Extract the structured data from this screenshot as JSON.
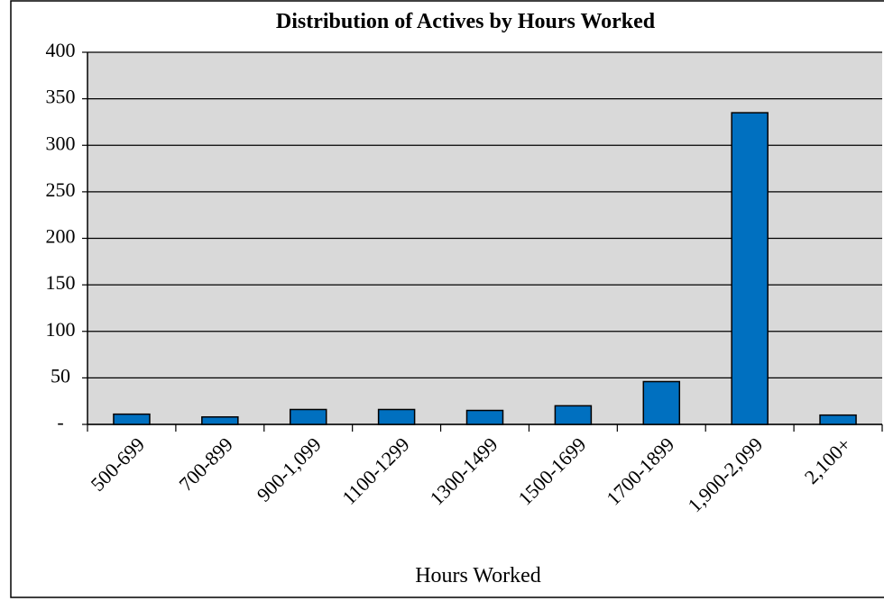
{
  "chart_data": {
    "type": "bar",
    "title": "Distribution of  Actives by  Hours Worked",
    "x_label": "Hours Worked",
    "categories": [
      "500-699",
      "700-899",
      "900-1,099",
      "1100-1299",
      "1300-1499",
      "1500-1699",
      "1700-1899",
      "1,900-2,099",
      "2,100+"
    ],
    "values": [
      11,
      8,
      16,
      16,
      15,
      20,
      46,
      335,
      10
    ],
    "color": "#0070c0",
    "ylim": [
      0,
      400
    ],
    "yticks": [
      {
        "value": 0,
        "label": "-"
      },
      50,
      100,
      150,
      200,
      250,
      300,
      350,
      400
    ],
    "grid": true
  }
}
